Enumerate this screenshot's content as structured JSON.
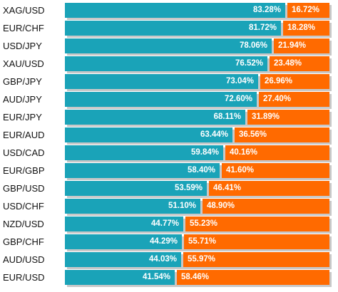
{
  "chart_data": {
    "type": "bar",
    "orientation": "horizontal",
    "stacked": true,
    "percent_stacked": true,
    "colors": {
      "long": "#1aa3b8",
      "short": "#ff6a00"
    },
    "categories": [
      "XAG/USD",
      "EUR/CHF",
      "USD/JPY",
      "XAU/USD",
      "GBP/JPY",
      "AUD/JPY",
      "EUR/JPY",
      "EUR/AUD",
      "USD/CAD",
      "EUR/GBP",
      "GBP/USD",
      "USD/CHF",
      "NZD/USD",
      "GBP/CHF",
      "AUD/USD",
      "EUR/USD"
    ],
    "series": [
      {
        "values": [
          83.28,
          81.72,
          78.06,
          76.52,
          73.04,
          72.6,
          68.11,
          63.44,
          59.84,
          58.4,
          53.59,
          51.1,
          44.77,
          44.29,
          44.03,
          41.54
        ],
        "labels": [
          "83.28%",
          "81.72%",
          "78.06%",
          "76.52%",
          "73.04%",
          "72.60%",
          "68.11%",
          "63.44%",
          "59.84%",
          "58.40%",
          "53.59%",
          "51.10%",
          "44.77%",
          "44.29%",
          "44.03%",
          "41.54%"
        ]
      },
      {
        "values": [
          16.72,
          18.28,
          21.94,
          23.48,
          26.96,
          27.4,
          31.89,
          36.56,
          40.16,
          41.6,
          46.41,
          48.9,
          55.23,
          55.71,
          55.97,
          58.46
        ],
        "labels": [
          "16.72%",
          "18.28%",
          "21.94%",
          "23.48%",
          "26.96%",
          "27.40%",
          "31.89%",
          "36.56%",
          "40.16%",
          "41.60%",
          "46.41%",
          "48.90%",
          "55.23%",
          "55.71%",
          "55.97%",
          "58.46%"
        ]
      }
    ]
  }
}
